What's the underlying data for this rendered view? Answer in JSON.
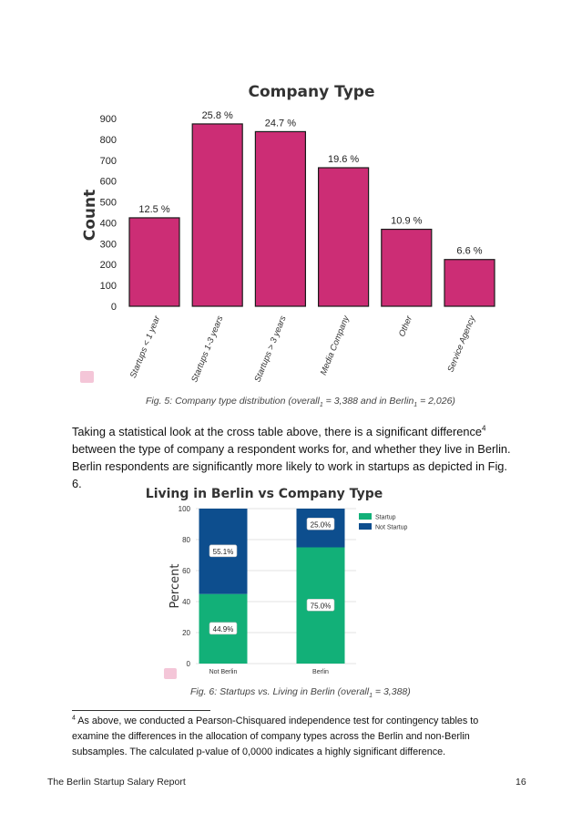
{
  "chart_data": [
    {
      "type": "bar",
      "title": "Company Type",
      "xlabel": "",
      "ylabel": "Count",
      "ylim": [
        0,
        900
      ],
      "yticks": [
        0,
        100,
        200,
        300,
        400,
        500,
        600,
        700,
        800,
        900
      ],
      "categories": [
        "Startups < 1 year",
        "Startups 1-3 years",
        "Startups > 3 years",
        "Media Company",
        "Other",
        "Service Agency"
      ],
      "values": [
        424,
        874,
        837,
        664,
        369,
        224
      ],
      "data_labels": [
        "12.5 %",
        "25.8 %",
        "24.7 %",
        "19.6 %",
        "10.9 %",
        "6.6 %"
      ],
      "bar_color": "#cc2d75",
      "grid": false
    },
    {
      "type": "bar",
      "stacked": true,
      "title": "Living in Berlin vs Company Type",
      "xlabel": "",
      "ylabel": "Percent",
      "ylim": [
        0,
        100
      ],
      "yticks": [
        0,
        20,
        40,
        60,
        80,
        100
      ],
      "categories": [
        "Not Berlin",
        "Berlin"
      ],
      "series": [
        {
          "name": "Startup",
          "values": [
            44.9,
            75.0
          ],
          "labels": [
            "44.9%",
            "75.0%"
          ],
          "color": "#12b078"
        },
        {
          "name": "Not Startup",
          "values": [
            55.1,
            25.0
          ],
          "labels": [
            "55.1%",
            "25.0%"
          ],
          "color": "#0d4e8e"
        }
      ],
      "legend": "top-right",
      "grid": true
    }
  ],
  "captions": {
    "fig5": "Fig. 5: Company type distribution (overall",
    "fig5_sub1": "1",
    "fig5_mid": " = 3,388 and in Berlin",
    "fig5_sub2": "1",
    "fig5_end": " = 2,026)",
    "fig6": "Fig. 6: Startups vs. Living in Berlin (overall",
    "fig6_sub": "1",
    "fig6_end": " = 3,388)"
  },
  "paragraph": {
    "part1": "Taking a statistical look at the cross table above, there is a significant difference",
    "sup": "4",
    "part2": " between the type of company a respondent works for, and whether they live in Berlin. Berlin respondents are significantly more likely to work in startups as depicted in Fig. 6."
  },
  "footnote": {
    "number": "4",
    "text": " As above, we conducted a Pearson-Chisquared independence test for contingency tables to examine the differences in the allocation of company types across the Berlin and non-Berlin subsamples. The calculated p-value of 0,0000 indicates a highly significant difference."
  },
  "footer": {
    "report_title": "The Berlin Startup Salary Report",
    "page_number": "16"
  },
  "colors": {
    "bar_magenta": "#cc2d75",
    "startup_green": "#12b078",
    "not_startup_blue": "#0d4e8e",
    "logo_pink": "#f4c6d8"
  }
}
